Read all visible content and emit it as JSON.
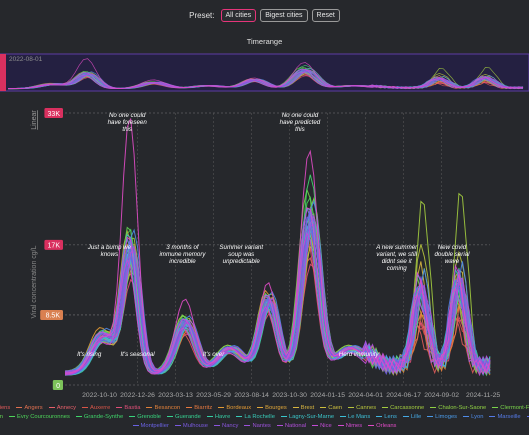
{
  "preset": {
    "label": "Preset:",
    "buttons": [
      {
        "label": "All cities",
        "active": true
      },
      {
        "label": "Bigest cities",
        "active": false
      },
      {
        "label": "Reset",
        "active": false
      }
    ]
  },
  "timerange": {
    "title": "Timerange",
    "start_label": "2022-08-01"
  },
  "scale_label": "Linear",
  "chart_data": {
    "type": "line",
    "ylabel": "Viral concentration cg/L",
    "y_ticks": [
      {
        "value": 33000,
        "label": "33K",
        "color": "#d9305f"
      },
      {
        "value": 17000,
        "label": "17K",
        "color": "#d9305f"
      },
      {
        "value": 8500,
        "label": "8.5K",
        "color": "#d98050"
      },
      {
        "value": 0,
        "label": "0",
        "color": "#7cc35a"
      }
    ],
    "ylim": [
      0,
      33000
    ],
    "x_ticks": [
      "2022-10-10",
      "2022-12-26",
      "2023-03-13",
      "2023-05-29",
      "2023-08-14",
      "2023-10-30",
      "2024-01-15",
      "2024-04-01",
      "2024-06-17",
      "2024-09-02",
      "2024-11-25"
    ],
    "annotations": [
      {
        "date": "2022-12-05",
        "value": 33000,
        "text": [
          "No one could",
          "have foreseen",
          "this"
        ]
      },
      {
        "date": "2022-10-30",
        "value": 17000,
        "text": [
          "Just a bump we",
          "knows"
        ]
      },
      {
        "date": "2022-09-19",
        "value": 4000,
        "text": [
          "It's rising"
        ]
      },
      {
        "date": "2022-12-26",
        "value": 4000,
        "text": [
          "It's seasonal"
        ]
      },
      {
        "date": "2023-03-27",
        "value": 17000,
        "text": [
          "3 months of",
          "immune memory",
          "incredible"
        ]
      },
      {
        "date": "2023-05-29",
        "value": 4000,
        "text": [
          "It's over"
        ]
      },
      {
        "date": "2023-07-24",
        "value": 17000,
        "text": [
          "Summer variant",
          "soup was",
          "unpredictable"
        ]
      },
      {
        "date": "2023-11-20",
        "value": 33000,
        "text": [
          "No one could",
          "have predicted",
          "this"
        ]
      },
      {
        "date": "2024-03-18",
        "value": 4000,
        "text": [
          "Herd immunity"
        ]
      },
      {
        "date": "2024-06-03",
        "value": 17000,
        "text": [
          "A new summer",
          "variant, we still",
          "didnt see it",
          "coming"
        ]
      },
      {
        "date": "2024-09-23",
        "value": 17000,
        "text": [
          "New covid",
          "double serial",
          "wave"
        ]
      }
    ],
    "series_peaks": [
      {
        "name": "Amiens",
        "color": "#e05a5a",
        "peaks": [
          4500,
          14000,
          5000,
          3000,
          8000,
          16000,
          3000,
          4500,
          5500
        ]
      },
      {
        "name": "Angers",
        "color": "#e07050",
        "peaks": [
          5000,
          15000,
          6000,
          2500,
          9000,
          18000,
          2800,
          6000,
          7000
        ]
      },
      {
        "name": "Annecy",
        "color": "#e8606a",
        "peaks": [
          3800,
          12000,
          5200,
          2900,
          7500,
          14000,
          2500,
          5000,
          6000
        ]
      },
      {
        "name": "Auxerre",
        "color": "#d95548",
        "peaks": [
          4200,
          13000,
          4800,
          3100,
          8500,
          15000,
          3200,
          4800,
          5200
        ]
      },
      {
        "name": "Bastia",
        "color": "#e04f78",
        "peaks": [
          3500,
          11000,
          4500,
          2600,
          7000,
          13000,
          2600,
          4200,
          4800
        ]
      },
      {
        "name": "Besancon",
        "color": "#e0803a",
        "peaks": [
          5200,
          16000,
          6500,
          3300,
          9500,
          19000,
          3000,
          7000,
          8000
        ]
      },
      {
        "name": "Biarritz",
        "color": "#e7793f",
        "peaks": [
          4600,
          14500,
          5500,
          2800,
          8800,
          17000,
          2900,
          6500,
          7500
        ]
      },
      {
        "name": "Bordeaux",
        "color": "#e39a34",
        "peaks": [
          5500,
          17000,
          7000,
          3400,
          10000,
          20000,
          3400,
          8000,
          9000
        ]
      },
      {
        "name": "Bourges",
        "color": "#e2a83a",
        "peaks": [
          4800,
          15500,
          6200,
          3000,
          9200,
          18500,
          3100,
          9000,
          10000
        ]
      },
      {
        "name": "Brest",
        "color": "#d9b640",
        "peaks": [
          4000,
          13500,
          5800,
          2700,
          8200,
          16500,
          2700,
          12000,
          11000
        ]
      },
      {
        "name": "Caen",
        "color": "#cdbf3e",
        "peaks": [
          4400,
          14200,
          6100,
          2900,
          8700,
          17500,
          3000,
          10500,
          12500
        ]
      },
      {
        "name": "Cannes",
        "color": "#b8c43d",
        "peaks": [
          3900,
          12500,
          5600,
          2750,
          7900,
          15500,
          2750,
          15000,
          14000
        ]
      },
      {
        "name": "Carcassonne",
        "color": "#a3cc3f",
        "peaks": [
          5100,
          16500,
          6700,
          3200,
          9700,
          19500,
          3300,
          20000,
          21000
        ]
      },
      {
        "name": "Chalon-Sur-Saone",
        "color": "#8fd044",
        "peaks": [
          4300,
          14800,
          6300,
          3050,
          9000,
          21000,
          3050,
          11000,
          9500
        ]
      },
      {
        "name": "Clermont-Ferrand",
        "color": "#79d34a",
        "peaks": [
          4700,
          15800,
          6800,
          3150,
          9400,
          22000,
          3150,
          9500,
          8500
        ]
      },
      {
        "name": "Dijon",
        "color": "#62d451",
        "peaks": [
          4100,
          18000,
          7200,
          2950,
          8900,
          20500,
          2950,
          8500,
          9000
        ]
      },
      {
        "name": "Evry Courcouronnes",
        "color": "#4ed65a",
        "peaks": [
          5300,
          17500,
          6900,
          3250,
          9300,
          21500,
          3250,
          9800,
          10500
        ]
      },
      {
        "name": "Grande-Synthe",
        "color": "#3fd66a",
        "peaks": [
          4900,
          16200,
          6400,
          3100,
          9100,
          24000,
          3100,
          10200,
          11500
        ]
      },
      {
        "name": "Grenoble",
        "color": "#38d57d",
        "peaks": [
          4500,
          15200,
          6000,
          2850,
          8600,
          19000,
          2850,
          9200,
          10800
        ]
      },
      {
        "name": "Guerande",
        "color": "#36d392",
        "peaks": [
          4000,
          14000,
          5700,
          2700,
          8300,
          18000,
          2700,
          8800,
          9600
        ]
      },
      {
        "name": "Havre",
        "color": "#36d0a6",
        "peaks": [
          4600,
          15000,
          6100,
          2950,
          8800,
          18800,
          2950,
          9400,
          10100
        ]
      },
      {
        "name": "La Rochelle",
        "color": "#38ccba",
        "peaks": [
          4200,
          14400,
          5900,
          2800,
          8400,
          17800,
          2800,
          9000,
          9900
        ]
      },
      {
        "name": "Lagny-Sur-Marne",
        "color": "#3bc7cb",
        "peaks": [
          5000,
          16800,
          6600,
          3200,
          9600,
          20200,
          3200,
          10600,
          11200
        ]
      },
      {
        "name": "Le Mans",
        "color": "#3ec0d8",
        "peaks": [
          4300,
          14600,
          6050,
          2900,
          8650,
          18200,
          2900,
          9300,
          10300
        ]
      },
      {
        "name": "Lens",
        "color": "#42b6e0",
        "peaks": [
          4700,
          15400,
          6350,
          3000,
          8950,
          19200,
          3000,
          9700,
          10700
        ]
      },
      {
        "name": "Lille",
        "color": "#46a9e5",
        "peaks": [
          4400,
          14900,
          6150,
          2950,
          8750,
          18600,
          2950,
          9500,
          10400
        ]
      },
      {
        "name": "Limoges",
        "color": "#4a9ae8",
        "peaks": [
          4100,
          14100,
          5850,
          2750,
          8350,
          17600,
          2750,
          8900,
          9800
        ]
      },
      {
        "name": "Lyon",
        "color": "#4f8be9",
        "peaks": [
          5400,
          17200,
          6950,
          3350,
          9850,
          20800,
          3350,
          10900,
          11800
        ]
      },
      {
        "name": "Marseille",
        "color": "#557be8",
        "peaks": [
          4800,
          16000,
          6500,
          3100,
          9250,
          19800,
          3100,
          10300,
          11100
        ]
      },
      {
        "name": "Metz",
        "color": "#5e6de6",
        "peaks": [
          4500,
          15100,
          6200,
          2950,
          8800,
          18900,
          2950,
          9600,
          10500
        ]
      },
      {
        "name": "Montpellier",
        "color": "#6a62e3",
        "peaks": [
          4200,
          14300,
          5950,
          2800,
          8450,
          17900,
          2800,
          9100,
          10000
        ]
      },
      {
        "name": "Mulhouse",
        "color": "#7a5ae0",
        "peaks": [
          4900,
          16300,
          6550,
          3150,
          9350,
          20000,
          3150,
          10400,
          11300
        ]
      },
      {
        "name": "Nancy",
        "color": "#8b55dd",
        "peaks": [
          4600,
          15300,
          6250,
          3000,
          8900,
          19100,
          3000,
          9800,
          10600
        ]
      },
      {
        "name": "Nantes",
        "color": "#9c52db",
        "peaks": [
          4300,
          14700,
          6000,
          2850,
          8550,
          18100,
          2850,
          9200,
          10200
        ]
      },
      {
        "name": "National",
        "color": "#b04fd9",
        "peaks": [
          4550,
          15000,
          6200,
          2950,
          8800,
          18800,
          2950,
          9500,
          10400
        ]
      },
      {
        "name": "Nice",
        "color": "#c34dd6",
        "peaks": [
          4000,
          13800,
          5700,
          2700,
          8250,
          17200,
          2700,
          8700,
          9500
        ]
      },
      {
        "name": "Nimes",
        "color": "#d34bd0",
        "peaks": [
          5100,
          16600,
          6700,
          3250,
          9650,
          20400,
          3250,
          10700,
          11600
        ]
      },
      {
        "name": "Orleans",
        "color": "#e04bc5",
        "peaks": [
          4400,
          31000,
          9000,
          3000,
          11000,
          27000,
          3000,
          9600,
          10300
        ]
      }
    ]
  }
}
